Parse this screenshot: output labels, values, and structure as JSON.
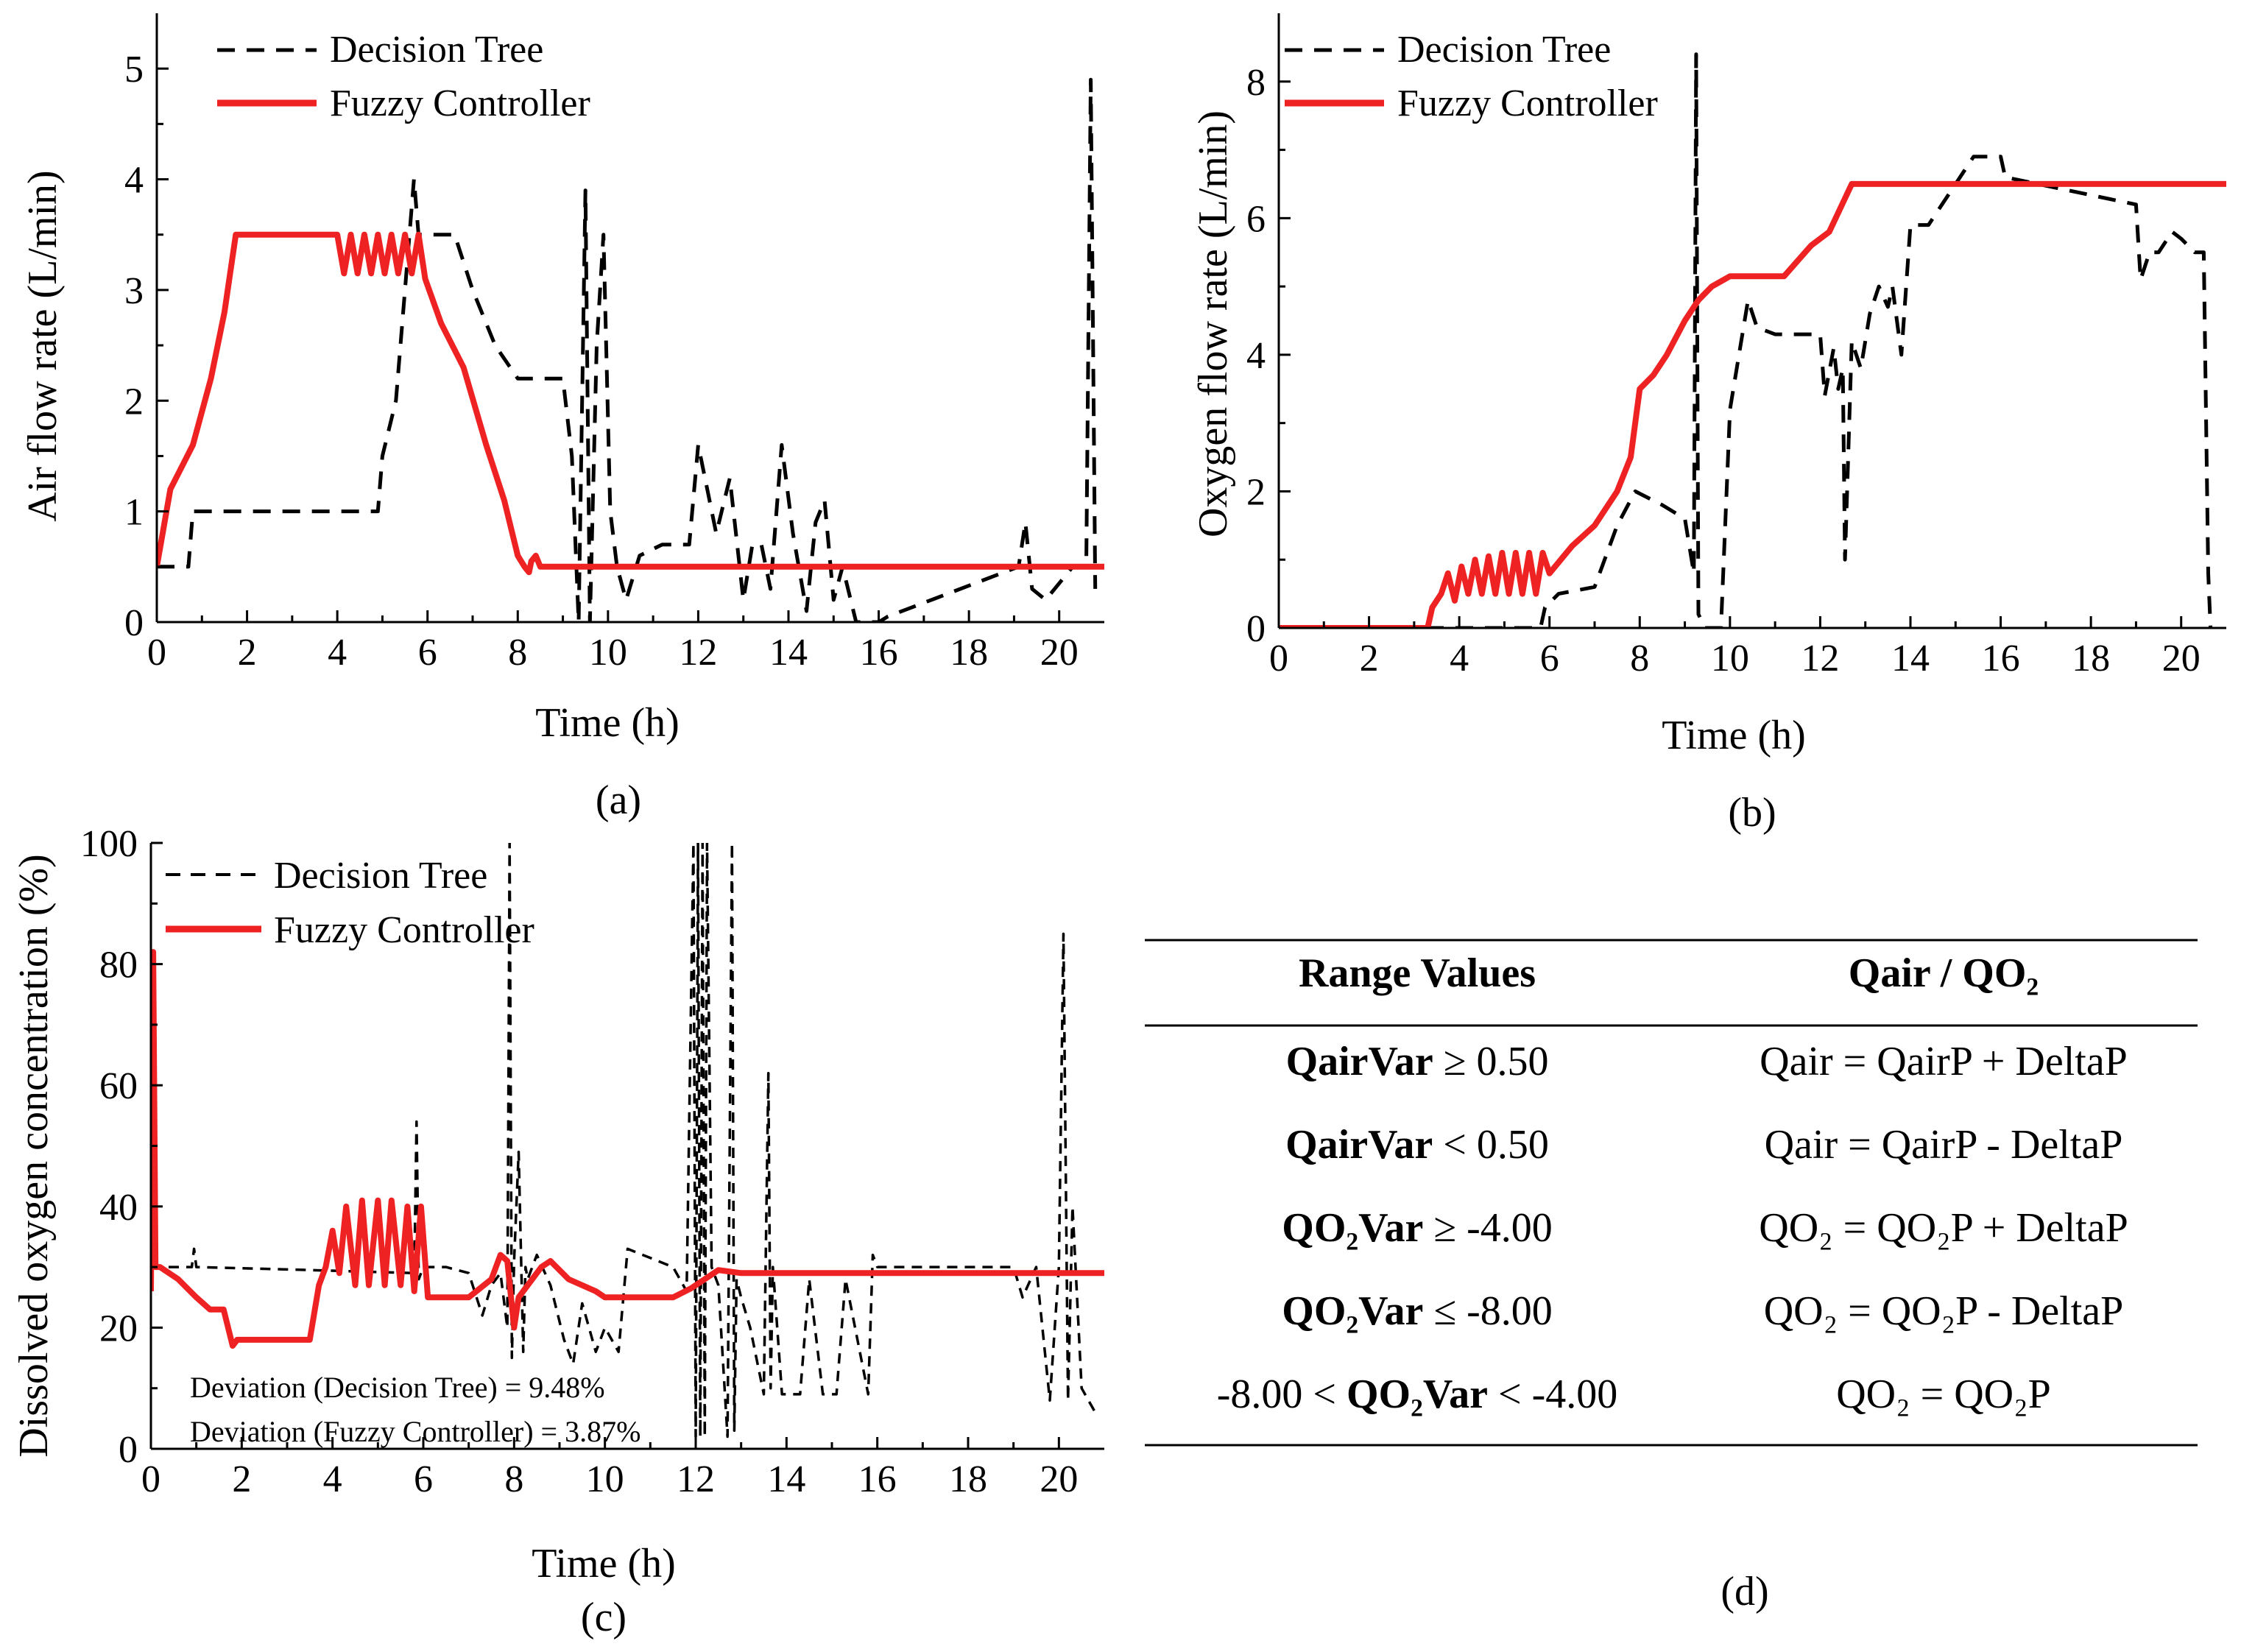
{
  "figure": {
    "background": "#ffffff",
    "decision_tree_color": "#000000",
    "fuzzy_color": "#ee2222"
  },
  "chart_data": [
    {
      "id": "a",
      "type": "line",
      "panel_label": "(a)",
      "xlabel": "Time (h)",
      "ylabel": "Air flow rate (L/min)",
      "xlim": [
        0,
        21
      ],
      "ylim": [
        0,
        5.5
      ],
      "xticks": [
        0,
        2,
        4,
        6,
        8,
        10,
        12,
        14,
        16,
        18,
        20
      ],
      "yticks": [
        0,
        1,
        2,
        3,
        4,
        5
      ],
      "legend": [
        "Decision Tree",
        "Fuzzy Controller"
      ],
      "series": [
        {
          "name": "Decision Tree",
          "style": "dashed",
          "x": [
            0,
            0.7,
            0.8,
            4.9,
            5.0,
            5.3,
            5.5,
            5.7,
            5.8,
            5.9,
            6.6,
            7.0,
            7.5,
            8.0,
            8.5,
            9.0,
            9.2,
            9.35,
            9.5,
            9.6,
            9.75,
            9.9,
            10.05,
            10.2,
            10.4,
            10.7,
            11.2,
            11.8,
            12.0,
            12.2,
            12.4,
            12.7,
            13.0,
            13.2,
            13.4,
            13.6,
            13.85,
            14.1,
            14.4,
            14.6,
            14.8,
            15.0,
            15.2,
            15.5,
            16.0,
            16.2,
            19.1,
            19.25,
            19.4,
            19.7,
            20.3,
            20.6,
            20.7,
            20.8
          ],
          "values": [
            0.5,
            0.5,
            1.0,
            1.0,
            1.5,
            2.0,
            3.0,
            4.0,
            3.5,
            3.5,
            3.5,
            3.0,
            2.5,
            2.2,
            2.2,
            2.2,
            1.5,
            0.0,
            3.9,
            0.0,
            2.5,
            3.5,
            1.0,
            0.5,
            0.2,
            0.6,
            0.7,
            0.7,
            1.6,
            1.2,
            0.8,
            1.3,
            0.2,
            0.7,
            0.7,
            0.3,
            1.6,
            0.8,
            0.1,
            0.9,
            1.1,
            0.2,
            0.5,
            0.0,
            0.0,
            0.05,
            0.5,
            0.9,
            0.3,
            0.2,
            0.5,
            0.5,
            4.9,
            0.3
          ]
        },
        {
          "name": "Fuzzy Controller",
          "style": "solid",
          "x": [
            0,
            0.3,
            0.8,
            1.2,
            1.5,
            1.75,
            4.0,
            4.15,
            4.3,
            4.45,
            4.6,
            4.75,
            4.9,
            5.05,
            5.2,
            5.35,
            5.5,
            5.65,
            5.8,
            5.95,
            6.3,
            6.8,
            7.3,
            7.7,
            8.0,
            8.15,
            8.25,
            8.3,
            8.4,
            8.5,
            21.0
          ],
          "values": [
            0.5,
            1.2,
            1.6,
            2.2,
            2.8,
            3.5,
            3.5,
            3.15,
            3.5,
            3.15,
            3.5,
            3.15,
            3.5,
            3.15,
            3.5,
            3.15,
            3.5,
            3.15,
            3.5,
            3.1,
            2.7,
            2.3,
            1.6,
            1.1,
            0.6,
            0.5,
            0.45,
            0.55,
            0.6,
            0.5,
            0.5
          ]
        }
      ]
    },
    {
      "id": "b",
      "type": "line",
      "panel_label": "(b)",
      "xlabel": "Time (h)",
      "ylabel": "Oxygen flow rate (L/min)",
      "xlim": [
        0,
        21
      ],
      "ylim": [
        0,
        9
      ],
      "xticks": [
        0,
        2,
        4,
        6,
        8,
        10,
        12,
        14,
        16,
        18,
        20
      ],
      "yticks": [
        0,
        2,
        4,
        6,
        8
      ],
      "legend": [
        "Decision Tree",
        "Fuzzy Controller"
      ],
      "series": [
        {
          "name": "Decision Tree",
          "style": "dashed",
          "x": [
            0,
            3.5,
            5.8,
            5.9,
            6.2,
            7.0,
            7.5,
            7.9,
            8.5,
            9.0,
            9.2,
            9.25,
            9.3,
            9.45,
            9.6,
            9.8,
            10.0,
            10.2,
            10.4,
            10.6,
            11.0,
            11.5,
            12.0,
            12.1,
            12.3,
            12.4,
            12.5,
            12.55,
            12.7,
            12.9,
            13.1,
            13.3,
            13.5,
            13.6,
            13.8,
            14.0,
            14.2,
            14.4,
            15.0,
            15.4,
            16.0,
            16.1,
            19.0,
            19.1,
            19.3,
            19.5,
            19.8,
            20.0,
            20.3,
            20.5,
            20.6,
            20.65
          ],
          "values": [
            0,
            0,
            0,
            0.3,
            0.5,
            0.6,
            1.5,
            2.0,
            1.8,
            1.6,
            0.8,
            8.4,
            0.2,
            0.0,
            0.0,
            0.0,
            3.2,
            4.0,
            4.8,
            4.4,
            4.3,
            4.3,
            4.3,
            3.4,
            4.1,
            3.5,
            3.8,
            1.0,
            4.2,
            3.8,
            4.6,
            5.0,
            4.7,
            5.0,
            4.0,
            5.9,
            5.9,
            5.9,
            6.5,
            6.9,
            6.9,
            6.6,
            6.2,
            5.1,
            5.5,
            5.5,
            5.8,
            5.7,
            5.5,
            5.5,
            0.8,
            0.0
          ]
        },
        {
          "name": "Fuzzy Controller",
          "style": "solid",
          "x": [
            0,
            3.3,
            3.4,
            3.6,
            3.75,
            3.9,
            4.05,
            4.2,
            4.35,
            4.5,
            4.65,
            4.8,
            4.95,
            5.1,
            5.25,
            5.4,
            5.55,
            5.7,
            5.85,
            6.0,
            6.5,
            7.0,
            7.5,
            7.8,
            8.0,
            8.3,
            8.6,
            9.0,
            9.3,
            9.6,
            10.0,
            11.2,
            11.8,
            12.2,
            12.7,
            21.0
          ],
          "values": [
            0,
            0,
            0.3,
            0.5,
            0.8,
            0.4,
            0.9,
            0.5,
            1.0,
            0.5,
            1.05,
            0.5,
            1.1,
            0.5,
            1.1,
            0.5,
            1.1,
            0.5,
            1.1,
            0.8,
            1.2,
            1.5,
            2.0,
            2.5,
            3.5,
            3.7,
            4.0,
            4.5,
            4.8,
            5.0,
            5.15,
            5.15,
            5.6,
            5.8,
            6.5,
            6.5
          ]
        }
      ]
    },
    {
      "id": "c",
      "type": "line",
      "panel_label": "(c)",
      "xlabel": "Time (h)",
      "ylabel": "Dissolved oxygen concentration (%)",
      "xlim": [
        0,
        21
      ],
      "ylim": [
        0,
        100
      ],
      "xticks": [
        0,
        2,
        4,
        6,
        8,
        10,
        12,
        14,
        16,
        18,
        20
      ],
      "yticks": [
        0,
        20,
        40,
        60,
        80,
        100
      ],
      "legend": [
        "Decision Tree",
        "Fuzzy Controller"
      ],
      "annotations": [
        "Deviation (Decision Tree) = 9.48%",
        "Deviation (Fuzzy Controller) = 3.87%"
      ],
      "series": [
        {
          "name": "Decision Tree",
          "style": "dashed",
          "x": [
            0,
            0.2,
            0.9,
            0.95,
            1.0,
            3.5,
            5.8,
            5.85,
            5.9,
            6.0,
            6.5,
            7.0,
            7.3,
            7.5,
            7.7,
            7.85,
            7.9,
            7.95,
            8.0,
            8.1,
            8.2,
            8.25,
            8.3,
            8.5,
            8.8,
            9.1,
            9.3,
            9.5,
            9.8,
            10.0,
            10.3,
            10.5,
            11.5,
            11.8,
            11.95,
            12.0,
            12.05,
            12.1,
            12.15,
            12.2,
            12.25,
            12.35,
            12.5,
            12.7,
            12.8,
            12.85,
            12.9,
            13.0,
            13.2,
            13.5,
            13.6,
            13.65,
            13.7,
            13.9,
            14.3,
            14.5,
            14.8,
            15.1,
            15.3,
            15.8,
            15.9,
            16.0,
            19.0,
            19.2,
            19.5,
            19.8,
            20.0,
            20.1,
            20.2,
            20.3,
            20.5,
            20.8
          ],
          "values": [
            30,
            30,
            30,
            33,
            30,
            29.5,
            29,
            54,
            28,
            30,
            30,
            29,
            22,
            27,
            29,
            20,
            100,
            15,
            31,
            49,
            16,
            30,
            28,
            32,
            27,
            18,
            14,
            24,
            16,
            20,
            16,
            33,
            30,
            26,
            100,
            2,
            100,
            2,
            100,
            2,
            100,
            30,
            27,
            2,
            100,
            3,
            28,
            25,
            20,
            9,
            62,
            10,
            30,
            9,
            9,
            28,
            9,
            9,
            28,
            9,
            32,
            30,
            30,
            25,
            30,
            8,
            30,
            85,
            8,
            40,
            10,
            6
          ]
        },
        {
          "name": "Fuzzy Controller",
          "style": "solid",
          "x": [
            0,
            0.05,
            0.1,
            0.2,
            0.6,
            1.0,
            1.3,
            1.6,
            1.8,
            1.9,
            2.5,
            3.5,
            3.7,
            3.85,
            4.0,
            4.15,
            4.3,
            4.5,
            4.65,
            4.8,
            5.0,
            5.15,
            5.3,
            5.5,
            5.65,
            5.8,
            5.95,
            6.1,
            7.0,
            7.5,
            7.7,
            7.85,
            8.0,
            8.1,
            8.3,
            8.6,
            8.8,
            9.2,
            9.8,
            10.0,
            11.5,
            11.9,
            12.2,
            12.5,
            13.0,
            21.0
          ],
          "values": [
            26,
            82,
            30,
            30,
            28,
            25,
            23,
            23,
            17,
            18,
            18,
            18,
            27,
            30,
            36,
            29,
            40,
            27,
            41,
            27,
            41,
            27,
            41,
            27,
            40,
            26,
            40,
            25,
            25,
            28,
            32,
            31,
            20,
            25,
            27,
            30,
            31,
            28,
            26,
            25,
            25,
            26.5,
            28,
            29.5,
            29,
            29
          ]
        }
      ]
    }
  ],
  "table": {
    "panel_label": "(d)",
    "headers": [
      "Range Values",
      "Qair / QO₂"
    ],
    "rows": [
      {
        "pre": "",
        "bold": "QairVar",
        "post": " ≥ 0.50",
        "rule": "Qair = QairP + DeltaP"
      },
      {
        "pre": "",
        "bold": "QairVar",
        "post": " < 0.50",
        "rule": "Qair = QairP - DeltaP"
      },
      {
        "pre": "",
        "bold": "QO₂Var",
        "post": " ≥ -4.00",
        "rule": "QO₂ = QO₂P + DeltaP"
      },
      {
        "pre": "",
        "bold": "QO₂Var",
        "post": " ≤ -8.00",
        "rule": "QO₂ = QO₂P - DeltaP"
      },
      {
        "pre": "-8.00 < ",
        "bold": "QO₂Var",
        "post": " < -4.00",
        "rule": "QO₂ = QO₂P"
      }
    ]
  }
}
